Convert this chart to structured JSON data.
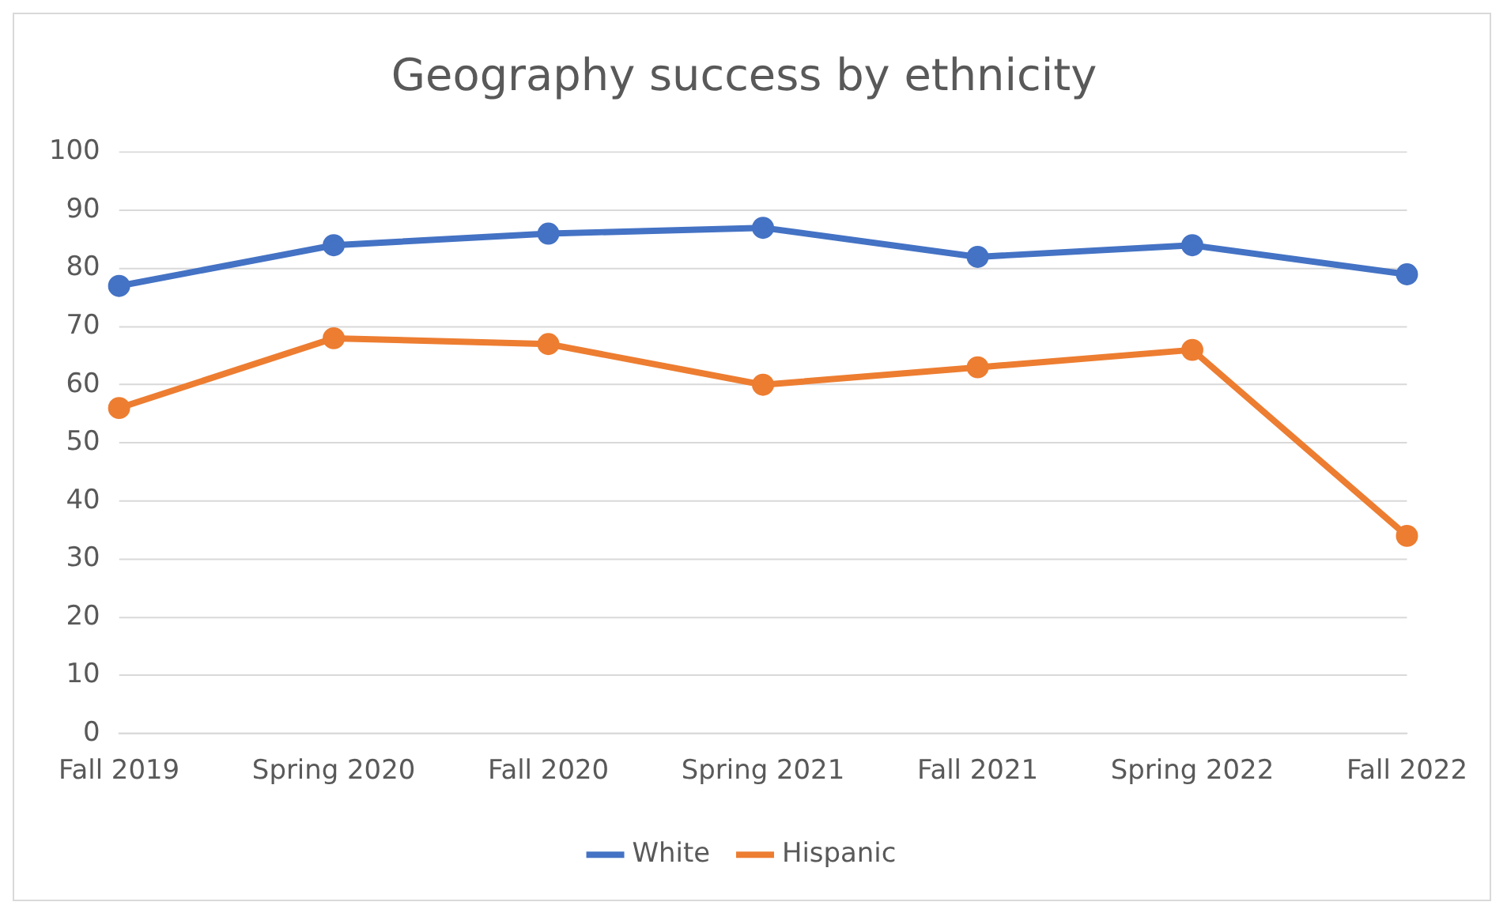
{
  "chart_data": {
    "type": "line",
    "title": "Geography success by ethnicity",
    "categories": [
      "Fall 2019",
      "Spring 2020",
      "Fall 2020",
      "Spring 2021",
      "Fall 2021",
      "Spring 2022",
      "Fall 2022"
    ],
    "series": [
      {
        "name": "White",
        "color": "#4472c4",
        "values": [
          77,
          84,
          86,
          87,
          82,
          84,
          79
        ]
      },
      {
        "name": "Hispanic",
        "color": "#ed7d31",
        "values": [
          56,
          68,
          67,
          60,
          63,
          66,
          34
        ]
      }
    ],
    "ylim": [
      0,
      100
    ],
    "yticks": [
      0,
      10,
      20,
      30,
      40,
      50,
      60,
      70,
      80,
      90,
      100
    ],
    "grid": "y",
    "legend": "bottom",
    "marker": "circle",
    "line_style": "solid"
  }
}
